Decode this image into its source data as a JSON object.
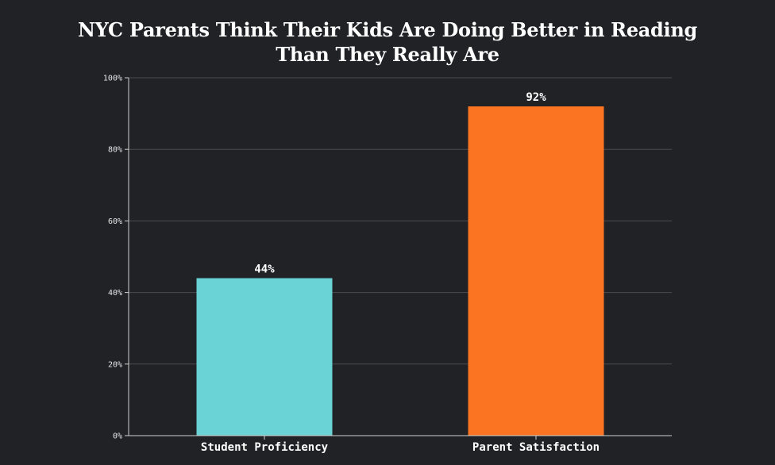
{
  "chart_data": {
    "type": "bar",
    "title": [
      "NYC Parents Think Their Kids Are Doing Better in Reading",
      "Than They Really Are"
    ],
    "categories": [
      "Student Proficiency",
      "Parent Satisfaction"
    ],
    "values": [
      44,
      92
    ],
    "data_labels": [
      "44%",
      "92%"
    ],
    "colors": [
      "#6ad3d6",
      "#fb7421"
    ],
    "ylim": [
      0,
      100
    ],
    "yticks": [
      0,
      20,
      40,
      60,
      80,
      100
    ],
    "ytick_labels": [
      "0%",
      "20%",
      "40%",
      "60%",
      "80%",
      "100%"
    ],
    "grid": true,
    "background": "#212226"
  }
}
